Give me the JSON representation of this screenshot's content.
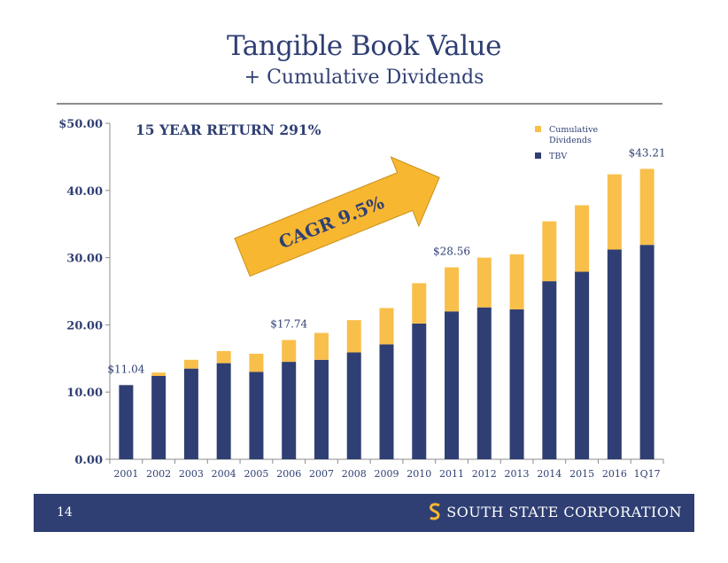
{
  "slide": {
    "title": "Tangible Book Value",
    "subtitle": "+ Cumulative Dividends",
    "page_number": "14",
    "company": "SOUTH STATE CORPORATION"
  },
  "colors": {
    "navy": "#2f3f73",
    "gold": "#f9bf4b",
    "arrow": "#f7b731"
  },
  "chart_data": {
    "type": "bar",
    "stacked": true,
    "categories": [
      "2001",
      "2002",
      "2003",
      "2004",
      "2005",
      "2006",
      "2007",
      "2008",
      "2009",
      "2010",
      "2011",
      "2012",
      "2013",
      "2014",
      "2015",
      "2016",
      "1Q17"
    ],
    "series": [
      {
        "name": "TBV",
        "color": "#2f3f73",
        "values": [
          11.04,
          12.4,
          13.5,
          14.3,
          13.0,
          14.5,
          14.8,
          15.9,
          17.1,
          20.2,
          22.0,
          22.6,
          22.3,
          26.5,
          27.9,
          31.2,
          31.9
        ]
      },
      {
        "name": "Cumulative Dividends",
        "color": "#f9bf4b",
        "values": [
          0,
          0.5,
          1.3,
          1.8,
          2.7,
          3.24,
          4.0,
          4.8,
          5.4,
          6.0,
          6.56,
          7.4,
          8.2,
          8.9,
          9.9,
          11.2,
          11.31
        ]
      }
    ],
    "ylim": [
      0,
      50
    ],
    "yticks": [
      {
        "value": 0,
        "label": "0.00"
      },
      {
        "value": 10,
        "label": "10.00"
      },
      {
        "value": 20,
        "label": "20.00"
      },
      {
        "value": 30,
        "label": "30.00"
      },
      {
        "value": 40,
        "label": "40.00"
      },
      {
        "value": 50,
        "label": "$50.00"
      }
    ],
    "legend": [
      {
        "label": "Cumulative Dividends",
        "color": "#f9bf4b"
      },
      {
        "label": "TBV",
        "color": "#2f3f73"
      }
    ],
    "legend_position": "top-right",
    "annotations": [
      {
        "index": 0,
        "text": "$11.04"
      },
      {
        "index": 5,
        "text": "$17.74"
      },
      {
        "index": 10,
        "text": "$28.56"
      },
      {
        "index": 16,
        "text": "$43.21"
      }
    ],
    "return_text": "15 YEAR RETURN  291%",
    "cagr_text": "CAGR  9.5%"
  }
}
